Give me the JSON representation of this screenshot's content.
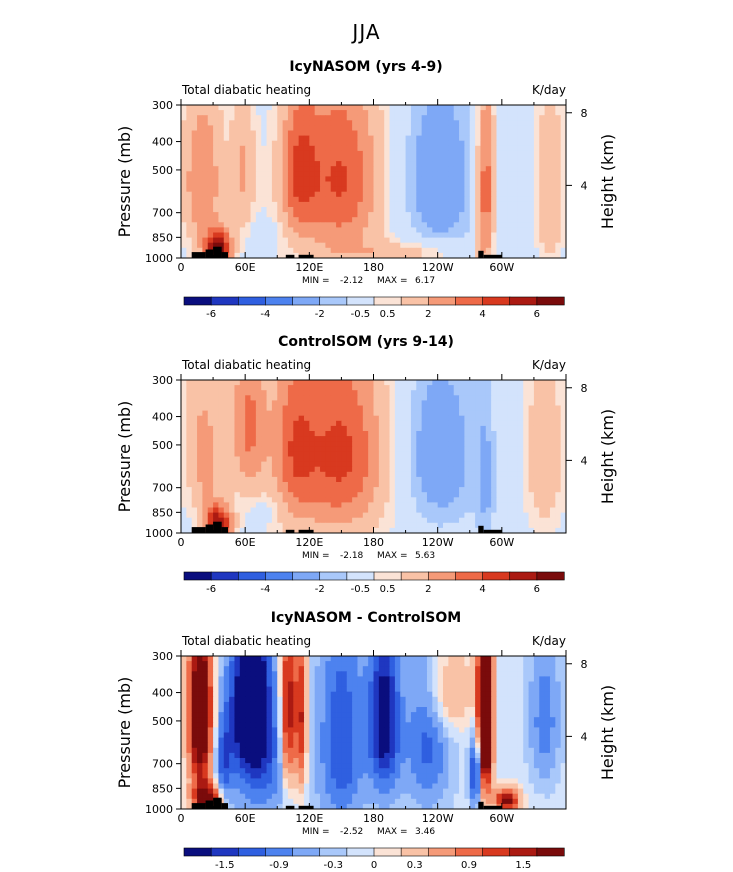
{
  "figure": {
    "title": "JJA"
  },
  "colors": {
    "palette": [
      "#0a0e7e",
      "#1f37c0",
      "#2f5fe0",
      "#4d82ef",
      "#7ea8f6",
      "#a9c8fa",
      "#d3e3fc",
      "#fbe3d6",
      "#f9c2a6",
      "#f59a78",
      "#ee6a48",
      "#d8391f",
      "#ab1a12",
      "#7a0b0b"
    ],
    "land": "#000000"
  },
  "chart_data": [
    {
      "type": "heatmap",
      "title": "IcyNASOM (yrs 4-9)",
      "left_label": "Total diabatic heating",
      "right_label": "K/day",
      "ylabel": "Pressure (mb)",
      "ylabel_right": "Height (km)",
      "x_ticks": [
        "0",
        "60E",
        "120E",
        "180",
        "120W",
        "60W"
      ],
      "x_range": [
        0,
        360
      ],
      "y_ticks": [
        "300",
        "400",
        "500",
        "700",
        "850",
        "1000"
      ],
      "y_range_mb": [
        300,
        1000
      ],
      "height_ticks": [
        "8",
        "4"
      ],
      "stats": {
        "min_label": "MIN =",
        "min": "-2.12",
        "max_label": "MAX =",
        "max": "6.17"
      },
      "colorbar_labels": [
        "-6",
        "-4",
        "-2",
        "-0.5",
        "0.5",
        "2",
        "4",
        "6"
      ],
      "features": [
        {
          "lon": 20,
          "p": 550,
          "wx": 14,
          "wp": 260,
          "amp": 3.0
        },
        {
          "lon": 35,
          "p": 930,
          "wx": 9,
          "wp": 90,
          "amp": 6.0
        },
        {
          "lon": 58,
          "p": 500,
          "wx": 8,
          "wp": 200,
          "amp": 2.0
        },
        {
          "lon": 110,
          "p": 500,
          "wx": 12,
          "wp": 200,
          "amp": 3.0
        },
        {
          "lon": 150,
          "p": 520,
          "wx": 25,
          "wp": 260,
          "amp": 3.0
        },
        {
          "lon": 140,
          "p": 650,
          "wx": 40,
          "wp": 400,
          "amp": 1.2
        },
        {
          "lon": 240,
          "p": 550,
          "wx": 25,
          "wp": 260,
          "amp": -1.8
        },
        {
          "lon": 210,
          "p": 960,
          "wx": 40,
          "wp": 60,
          "amp": 1.5
        },
        {
          "lon": 285,
          "p": 600,
          "wx": 6,
          "wp": 300,
          "amp": 4.0
        },
        {
          "lon": 345,
          "p": 600,
          "wx": 10,
          "wp": 300,
          "amp": 2.0
        },
        {
          "lon": 80,
          "p": 830,
          "wx": 10,
          "wp": 60,
          "amp": -0.6
        },
        {
          "lon": 300,
          "p": 700,
          "wx": 10,
          "wp": 200,
          "amp": -0.5
        }
      ],
      "land": [
        {
          "lon_start": 10,
          "lon_end": 23,
          "p_top": 955
        },
        {
          "lon_start": 23,
          "lon_end": 30,
          "p_top": 935
        },
        {
          "lon_start": 30,
          "lon_end": 38,
          "p_top": 915
        },
        {
          "lon_start": 38,
          "lon_end": 44,
          "p_top": 955
        },
        {
          "lon_start": 98,
          "lon_end": 106,
          "p_top": 975
        },
        {
          "lon_start": 110,
          "lon_end": 124,
          "p_top": 975
        },
        {
          "lon_start": 278,
          "lon_end": 283,
          "p_top": 945
        },
        {
          "lon_start": 283,
          "lon_end": 300,
          "p_top": 975
        }
      ]
    },
    {
      "type": "heatmap",
      "title": "ControlSOM (yrs 9-14)",
      "left_label": "Total diabatic heating",
      "right_label": "K/day",
      "ylabel": "Pressure (mb)",
      "ylabel_right": "Height (km)",
      "x_ticks": [
        "0",
        "60E",
        "120E",
        "180",
        "120W",
        "60W"
      ],
      "x_range": [
        0,
        360
      ],
      "y_ticks": [
        "300",
        "400",
        "500",
        "700",
        "850",
        "1000"
      ],
      "y_range_mb": [
        300,
        1000
      ],
      "height_ticks": [
        "8",
        "4"
      ],
      "stats": {
        "min_label": "MIN =",
        "min": "-2.18",
        "max_label": "MAX =",
        "max": "5.63"
      },
      "colorbar_labels": [
        "-6",
        "-4",
        "-2",
        "-0.5",
        "0.5",
        "2",
        "4",
        "6"
      ],
      "features": [
        {
          "lon": 20,
          "p": 550,
          "wx": 14,
          "wp": 260,
          "amp": 2.5
        },
        {
          "lon": 35,
          "p": 930,
          "wx": 9,
          "wp": 90,
          "amp": 5.5
        },
        {
          "lon": 63,
          "p": 420,
          "wx": 12,
          "wp": 200,
          "amp": 3.0
        },
        {
          "lon": 105,
          "p": 500,
          "wx": 14,
          "wp": 250,
          "amp": 2.5
        },
        {
          "lon": 150,
          "p": 520,
          "wx": 28,
          "wp": 280,
          "amp": 3.2
        },
        {
          "lon": 140,
          "p": 650,
          "wx": 45,
          "wp": 400,
          "amp": 1.2
        },
        {
          "lon": 240,
          "p": 550,
          "wx": 25,
          "wp": 260,
          "amp": -1.8
        },
        {
          "lon": 285,
          "p": 700,
          "wx": 6,
          "wp": 300,
          "amp": -1.0
        },
        {
          "lon": 340,
          "p": 550,
          "wx": 14,
          "wp": 300,
          "amp": 1.8
        },
        {
          "lon": 80,
          "p": 830,
          "wx": 10,
          "wp": 60,
          "amp": -0.6
        },
        {
          "lon": 10,
          "p": 700,
          "wx": 6,
          "wp": 200,
          "amp": -0.5
        }
      ],
      "land": [
        {
          "lon_start": 10,
          "lon_end": 23,
          "p_top": 955
        },
        {
          "lon_start": 23,
          "lon_end": 30,
          "p_top": 935
        },
        {
          "lon_start": 30,
          "lon_end": 38,
          "p_top": 915
        },
        {
          "lon_start": 38,
          "lon_end": 44,
          "p_top": 955
        },
        {
          "lon_start": 98,
          "lon_end": 106,
          "p_top": 975
        },
        {
          "lon_start": 110,
          "lon_end": 124,
          "p_top": 975
        },
        {
          "lon_start": 278,
          "lon_end": 283,
          "p_top": 945
        },
        {
          "lon_start": 283,
          "lon_end": 300,
          "p_top": 975
        }
      ]
    },
    {
      "type": "heatmap",
      "title": "IcyNASOM - ControlSOM",
      "left_label": "Total diabatic heating",
      "right_label": "K/day",
      "ylabel": "Pressure (mb)",
      "ylabel_right": "Height (km)",
      "x_ticks": [
        "0",
        "60E",
        "120E",
        "180",
        "120W",
        "60W"
      ],
      "x_range": [
        0,
        360
      ],
      "y_ticks": [
        "300",
        "400",
        "500",
        "700",
        "850",
        "1000"
      ],
      "y_range_mb": [
        300,
        1000
      ],
      "height_ticks": [
        "8",
        "4"
      ],
      "stats": {
        "min_label": "MIN =",
        "min": "-2.52",
        "max_label": "MAX =",
        "max": "3.46"
      },
      "colorbar_labels": [
        "-1.5",
        "-0.9",
        "-0.3",
        "0",
        "0.3",
        "0.9",
        "1.5"
      ],
      "features": [
        {
          "lon": 18,
          "p": 480,
          "wx": 8,
          "wp": 230,
          "amp": 2.8
        },
        {
          "lon": 25,
          "p": 920,
          "wx": 10,
          "wp": 80,
          "amp": 2.0
        },
        {
          "lon": 40,
          "p": 700,
          "wx": 6,
          "wp": 200,
          "amp": -1.0
        },
        {
          "lon": 65,
          "p": 420,
          "wx": 12,
          "wp": 180,
          "amp": -2.4
        },
        {
          "lon": 75,
          "p": 700,
          "wx": 20,
          "wp": 250,
          "amp": -1.0
        },
        {
          "lon": 100,
          "p": 480,
          "wx": 5,
          "wp": 250,
          "amp": 2.0
        },
        {
          "lon": 112,
          "p": 500,
          "wx": 4,
          "wp": 250,
          "amp": 1.6
        },
        {
          "lon": 150,
          "p": 600,
          "wx": 15,
          "wp": 350,
          "amp": -1.2
        },
        {
          "lon": 190,
          "p": 500,
          "wx": 10,
          "wp": 250,
          "amp": -1.8
        },
        {
          "lon": 230,
          "p": 600,
          "wx": 15,
          "wp": 250,
          "amp": -1.0
        },
        {
          "lon": 284,
          "p": 500,
          "wx": 5,
          "wp": 250,
          "amp": 3.4
        },
        {
          "lon": 276,
          "p": 750,
          "wx": 4,
          "wp": 150,
          "amp": -1.8
        },
        {
          "lon": 305,
          "p": 930,
          "wx": 8,
          "wp": 60,
          "amp": 2.0
        },
        {
          "lon": 340,
          "p": 500,
          "wx": 10,
          "wp": 200,
          "amp": -0.8
        },
        {
          "lon": 250,
          "p": 400,
          "wx": 15,
          "wp": 100,
          "amp": 0.8
        }
      ],
      "land": [
        {
          "lon_start": 10,
          "lon_end": 23,
          "p_top": 955
        },
        {
          "lon_start": 23,
          "lon_end": 30,
          "p_top": 935
        },
        {
          "lon_start": 30,
          "lon_end": 38,
          "p_top": 915
        },
        {
          "lon_start": 38,
          "lon_end": 44,
          "p_top": 955
        },
        {
          "lon_start": 98,
          "lon_end": 106,
          "p_top": 975
        },
        {
          "lon_start": 110,
          "lon_end": 124,
          "p_top": 975
        },
        {
          "lon_start": 278,
          "lon_end": 283,
          "p_top": 945
        },
        {
          "lon_start": 283,
          "lon_end": 300,
          "p_top": 975
        }
      ]
    }
  ]
}
